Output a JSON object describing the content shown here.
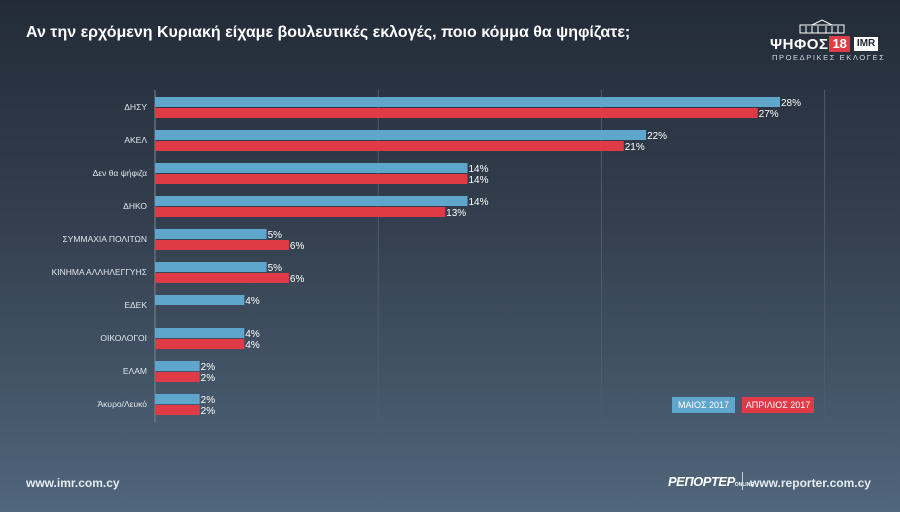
{
  "title": "Αν την ερχόμενη Κυριακή είχαμε βουλευτικές εκλογές, ποιο κόμμα θα ψηφίζατε;",
  "brand": {
    "name": "ΨΗΦΟΣ",
    "number": "18",
    "partner": "IMR",
    "subtitle": "ΠΡΟΕΔΡΙΚΕΣ ΕΚΛΟΓΕΣ"
  },
  "footer": {
    "left": "www.imr.com.cy",
    "reporter": "ΡΕΠΟΡΤΕΡ",
    "reporter_sub": "ONLINE",
    "right": "www.reporter.com.cy"
  },
  "colors": {
    "may": "#5fa6cd",
    "april": "#e03a47"
  },
  "chart_data": {
    "type": "bar",
    "orientation": "horizontal",
    "categories": [
      "ΔΗΣΥ",
      "ΑΚΕΛ",
      "Δεν θα ψήφιζα",
      "ΔΗΚΟ",
      "ΣΥΜΜΑΧΙΑ ΠΟΛΙΤΩΝ",
      "ΚΙΝΗΜΑ ΑΛΛΗΛΕΓΓΥΗΣ",
      "ΕΔΕΚ",
      "ΟΙΚΟΛΟΓΟΙ",
      "ΕΛΑΜ",
      "Άκυρο/Λευκό"
    ],
    "series": [
      {
        "name": "ΜΑΙΟΣ 2017",
        "values": [
          28,
          22,
          14,
          14,
          5,
          5,
          4,
          4,
          2,
          2
        ]
      },
      {
        "name": "ΑΠΡΙΛΙΟΣ 2017",
        "values": [
          27,
          21,
          14,
          13,
          6,
          6,
          null,
          4,
          2,
          2
        ]
      }
    ],
    "value_suffix": "%",
    "xlim": [
      0,
      30
    ],
    "grid": true,
    "legend_position": "bottom-right"
  }
}
